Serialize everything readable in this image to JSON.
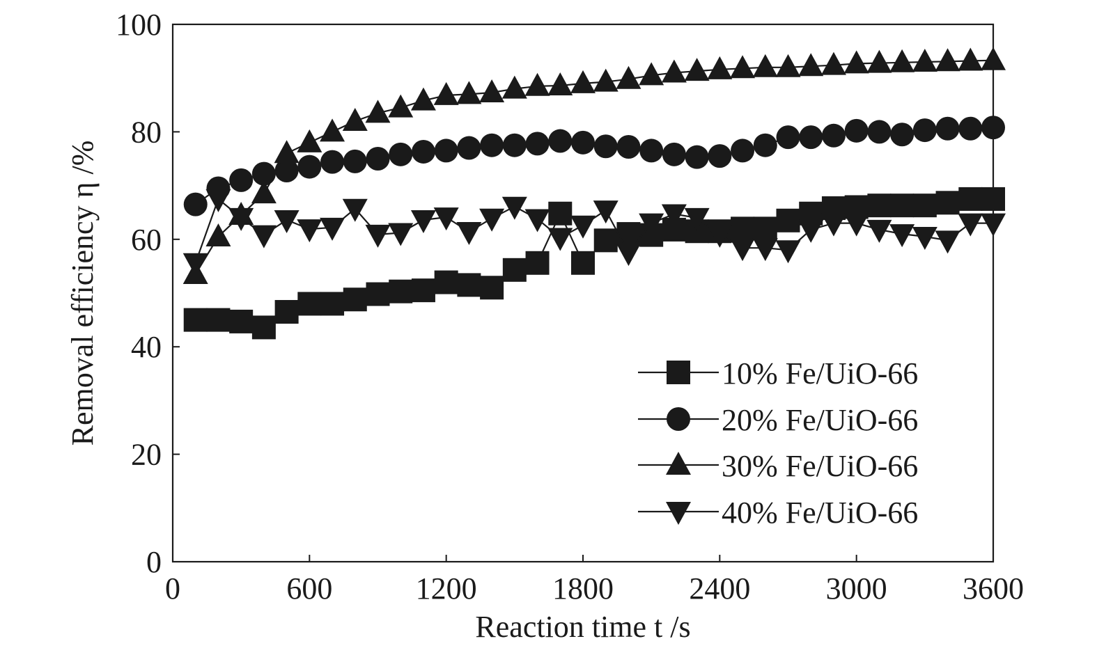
{
  "chart_data": {
    "type": "line",
    "title": "",
    "xlabel": "Reaction time t /s",
    "ylabel": "Removal efficiency η /%",
    "xlim": [
      0,
      3600
    ],
    "ylim": [
      0,
      100
    ],
    "xticks": [
      0,
      600,
      1200,
      1800,
      2400,
      3000,
      3600
    ],
    "yticks": [
      0,
      20,
      40,
      60,
      80,
      100
    ],
    "x_tick_labels": [
      "0",
      "600",
      "1200",
      "1800",
      "2400",
      "3000",
      "3600"
    ],
    "y_tick_labels": [
      "0",
      "20",
      "40",
      "60",
      "80",
      "100"
    ],
    "grid": false,
    "legend_position": "bottom-right",
    "x": [
      100,
      200,
      300,
      400,
      500,
      600,
      700,
      800,
      900,
      1000,
      1100,
      1200,
      1300,
      1400,
      1500,
      1600,
      1700,
      1800,
      1900,
      2000,
      2100,
      2200,
      2300,
      2400,
      2500,
      2600,
      2700,
      2800,
      2900,
      3000,
      3100,
      3200,
      3300,
      3400,
      3500,
      3600
    ],
    "series": [
      {
        "name": "10% Fe/UiO-66",
        "marker": "square",
        "values": [
          45.0,
          45.0,
          44.7,
          43.6,
          46.5,
          48.0,
          48.0,
          48.8,
          49.8,
          50.3,
          50.5,
          52.0,
          51.5,
          51.0,
          54.3,
          55.6,
          64.8,
          55.6,
          59.8,
          61.0,
          60.8,
          61.8,
          61.5,
          61.5,
          62.0,
          62.0,
          63.5,
          64.8,
          65.8,
          66.0,
          66.3,
          66.3,
          66.3,
          66.8,
          67.5,
          67.5
        ]
      },
      {
        "name": "20% Fe/UiO-66",
        "marker": "circle",
        "values": [
          66.5,
          69.5,
          71.0,
          72.2,
          72.8,
          73.5,
          74.4,
          74.5,
          75.0,
          75.8,
          76.3,
          76.5,
          77.0,
          77.5,
          77.5,
          77.8,
          78.3,
          78.0,
          77.3,
          77.2,
          76.5,
          75.8,
          75.3,
          75.5,
          76.5,
          77.5,
          79.0,
          79.0,
          79.3,
          80.2,
          80.0,
          79.5,
          80.3,
          80.6,
          80.6,
          80.8
        ]
      },
      {
        "name": "30% Fe/UiO-66",
        "marker": "triangle-up",
        "values": [
          53.5,
          60.5,
          64.5,
          68.5,
          76.0,
          78.0,
          80.0,
          82.0,
          83.5,
          84.5,
          85.8,
          86.8,
          87.0,
          87.3,
          88.0,
          88.5,
          88.6,
          89.0,
          89.3,
          89.8,
          90.5,
          91.0,
          91.3,
          91.6,
          91.8,
          92.0,
          92.0,
          92.2,
          92.4,
          92.7,
          92.8,
          92.9,
          93.0,
          93.1,
          93.2,
          93.3
        ]
      },
      {
        "name": "40% Fe/UiO-66",
        "marker": "triangle-down",
        "values": [
          55.6,
          67.5,
          64.0,
          60.8,
          63.6,
          61.9,
          62.2,
          65.7,
          60.9,
          61.2,
          63.6,
          64.1,
          61.4,
          63.9,
          66.1,
          63.8,
          60.3,
          62.6,
          65.4,
          57.5,
          63.0,
          64.7,
          64.0,
          60.9,
          58.4,
          58.4,
          58.0,
          61.8,
          63.0,
          63.0,
          61.8,
          61.0,
          60.5,
          59.8,
          63.0,
          63.0
        ]
      }
    ]
  }
}
